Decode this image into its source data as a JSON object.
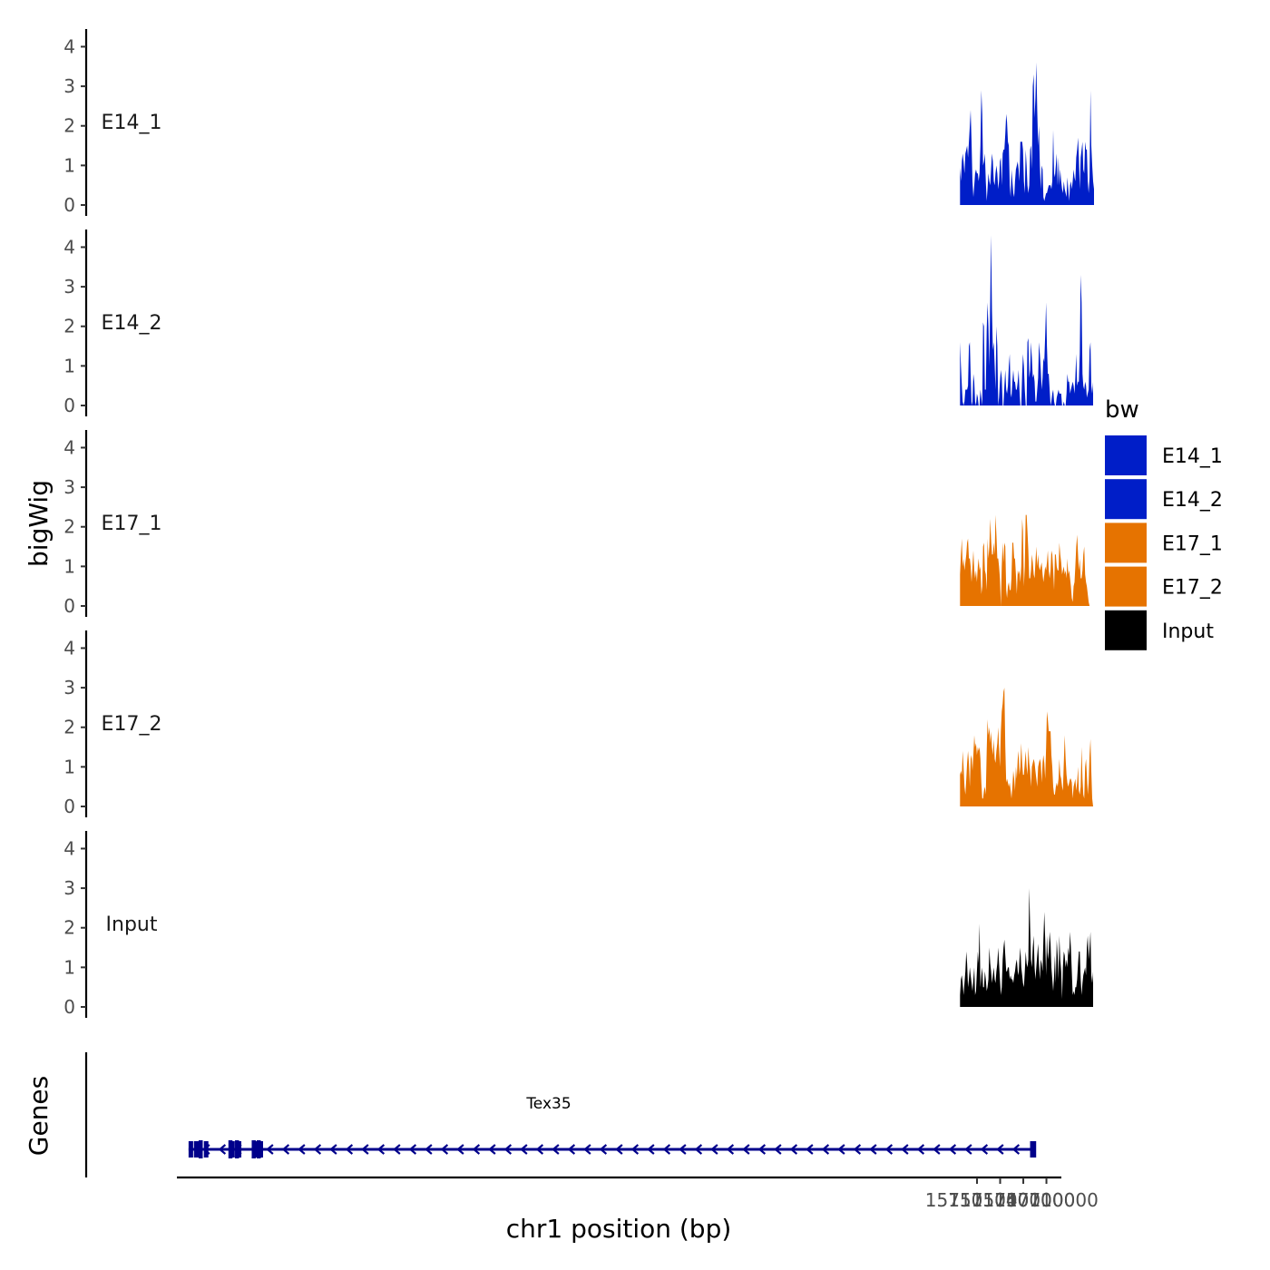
{
  "chart_data": {
    "type": "area",
    "title": "",
    "ylabel": "bigWig",
    "xlabel": "chr1 position (bp)",
    "genes_label": "Genes",
    "xlim": [
      156997500,
      157111700
    ],
    "ylim": [
      0,
      4.4
    ],
    "y_ticks": [
      0,
      1,
      2,
      3,
      4
    ],
    "x_ticks": [
      157101000,
      157104000,
      157107000,
      157110000
    ],
    "x_tick_labels": [
      "157101000",
      "157104000",
      "157107000",
      "157110000"
    ],
    "legend": {
      "title": "bw",
      "placement": "right",
      "entries": [
        {
          "label": "E14_1",
          "color": "#001ec8"
        },
        {
          "label": "E14_2",
          "color": "#001ec8"
        },
        {
          "label": "E17_1",
          "color": "#e67300"
        },
        {
          "label": "E17_2",
          "color": "#e67300"
        },
        {
          "label": "Input",
          "color": "#000000"
        }
      ]
    },
    "x_start": 157098800,
    "x_step": 115,
    "series": [
      {
        "name": "E14_1",
        "color": "#001ec8",
        "values": [
          0.95,
          0.6,
          1.1,
          1.3,
          1.1,
          0.8,
          1.3,
          1.4,
          1.5,
          1.2,
          1.6,
          2.0,
          2.4,
          1.6,
          0.6,
          0.2,
          0.5,
          0.8,
          0.9,
          0.8,
          0.8,
          0.6,
          0.8,
          1.5,
          2.9,
          2.3,
          1.0,
          1.1,
          1.3,
          0.6,
          0.1,
          0.4,
          0.8,
          0.6,
          0.5,
          0.9,
          1.3,
          1.1,
          0.6,
          0.5,
          0.8,
          1.0,
          0.8,
          0.4,
          0.6,
          1.1,
          1.2,
          0.5,
          1.3,
          1.4,
          1.4,
          1.8,
          2.3,
          2.1,
          1.6,
          1.5,
          0.5,
          0.2,
          0.9,
          0.6,
          0.3,
          0.2,
          0.6,
          0.9,
          1.0,
          1.1,
          0.9,
          0.6,
          1.6,
          1.6,
          1.6,
          1.4,
          0.6,
          0.3,
          1.4,
          1.0,
          0.5,
          0.3,
          0.5,
          1.4,
          1.5,
          0.9,
          3.0,
          3.3,
          2.2,
          2.7,
          3.6,
          2.4,
          1.5,
          2.0,
          1.0,
          0.4,
          1.0,
          0.9,
          0.2,
          0.1,
          0.2,
          0.3,
          0.3,
          0.4,
          0.5,
          0.5,
          0.5,
          0.4,
          0.6,
          1.9,
          0.8,
          0.7,
          1.0,
          1.3,
          0.5,
          1.2,
          0.5,
          0.9,
          0.6,
          0.4,
          0.3,
          0.6,
          0.4,
          0.3,
          0.2,
          0.7,
          0.4,
          0.1,
          0.5,
          0.6,
          0.4,
          0.6,
          0.9,
          0.7,
          0.6,
          1.2,
          1.4,
          1.7,
          1.2,
          0.4,
          1.2,
          1.4,
          1.6,
          0.9,
          0.8,
          1.6,
          1.4,
          1.4,
          0.6,
          0.3,
          0.7,
          2.9,
          1.5,
          1.0,
          0.6,
          0.4
        ]
      },
      {
        "name": "E14_2",
        "color": "#001ec8",
        "values": [
          1.6,
          1.0,
          0.5,
          0.1,
          0.0,
          0.1,
          0.4,
          0.4,
          0.4,
          0.5,
          1.5,
          1.6,
          0.8,
          0.0,
          0.1,
          0.8,
          0.6,
          0.1,
          0.0,
          0.3,
          0.2,
          -0.1,
          0.0,
          0.4,
          0.2,
          -0.1,
          2.1,
          2.0,
          0.4,
          0.4,
          1.9,
          2.6,
          2.0,
          1.0,
          2.7,
          4.3,
          2.4,
          1.4,
          1.6,
          1.0,
          0.4,
          2.0,
          1.5,
          0.0,
          0.2,
          0.6,
          0.9,
          0.7,
          -0.1,
          -0.1,
          0.5,
          0.9,
          0.4,
          0.3,
          0.5,
          1.0,
          1.3,
          0.3,
          0.2,
          0.6,
          0.9,
          0.6,
          0.6,
          0.4,
          0.4,
          0.6,
          0.9,
          0.4,
          0.0,
          0.0,
          0.8,
          1.3,
          1.0,
          0.4,
          0.0,
          -0.1,
          1.6,
          1.7,
          0.7,
          0.9,
          1.6,
          1.2,
          0.7,
          0.8,
          0.6,
          0.1,
          0.1,
          0.4,
          0.7,
          1.6,
          1.3,
          0.9,
          0.4,
          0.7,
          1.2,
          1.1,
          1.8,
          2.6,
          1.5,
          0.8,
          0.8,
          0.4,
          0.0,
          0.1,
          0.3,
          0.4,
          0.1,
          -0.1,
          -0.1,
          0.2,
          0.3,
          0.4,
          0.3,
          0.3,
          0.3,
          0.0,
          0.0,
          0.1,
          -0.1,
          -0.1,
          0.3,
          0.8,
          0.6,
          0.6,
          0.3,
          0.4,
          0.5,
          0.6,
          0.5,
          0.3,
          0.7,
          1.3,
          0.5,
          0.6,
          0.6,
          1.3,
          3.3,
          2.6,
          0.8,
          0.5,
          0.4,
          0.6,
          0.5,
          0.2,
          0.3,
          0.4,
          1.4,
          1.6,
          0.5,
          0.3,
          0.6
        ]
      },
      {
        "name": "E17_1",
        "color": "#e67300",
        "values": [
          0.8,
          1.3,
          1.7,
          1.0,
          1.2,
          0.9,
          1.1,
          1.3,
          1.6,
          1.7,
          1.2,
          1.2,
          1.0,
          0.6,
          1.0,
          1.4,
          0.9,
          0.7,
          0.9,
          0.6,
          1.0,
          1.2,
          0.9,
          1.0,
          0.3,
          0.5,
          1.5,
          1.6,
          0.9,
          0.8,
          0.4,
          1.7,
          1.2,
          1.5,
          2.2,
          1.7,
          1.3,
          1.3,
          1.6,
          1.3,
          2.3,
          1.8,
          1.2,
          1.2,
          1.0,
          0.7,
          -0.1,
          1.0,
          1.6,
          1.1,
          1.6,
          1.5,
          0.4,
          0.2,
          0.5,
          0.6,
          0.4,
          0.4,
          0.7,
          1.6,
          1.6,
          1.2,
          1.2,
          0.8,
          0.3,
          0.9,
          0.8,
          0.9,
          0.6,
          1.0,
          2.2,
          1.9,
          0.5,
          1.0,
          2.3,
          2.3,
          1.9,
          1.4,
          0.7,
          0.7,
          0.9,
          1.3,
          1.1,
          0.8,
          0.7,
          1.1,
          1.5,
          1.0,
          1.3,
          1.0,
          0.9,
          1.0,
          1.1,
          0.8,
          0.6,
          0.8,
          1.0,
          0.9,
          1.1,
          1.4,
          0.9,
          0.7,
          0.9,
          1.4,
          1.3,
          0.9,
          0.4,
          1.3,
          1.3,
          1.0,
          0.9,
          0.9,
          1.6,
          1.3,
          1.1,
          0.8,
          0.9,
          1.0,
          0.8,
          0.9,
          0.7,
          1.2,
          0.8,
          0.9,
          0.7,
          0.5,
          0.2,
          0.1,
          0.5,
          0.6,
          1.0,
          1.5,
          1.8,
          1.3,
          0.9,
          1.2,
          0.7,
          0.7,
          0.9,
          1.3,
          1.5,
          0.8,
          0.6,
          0.5,
          0.3,
          0.1,
          0.0
        ]
      },
      {
        "name": "E17_2",
        "color": "#e67300",
        "values": [
          0.8,
          0.9,
          0.8,
          1.4,
          1.0,
          0.5,
          0.3,
          0.7,
          1.1,
          1.4,
          1.1,
          0.5,
          1.2,
          1.3,
          0.9,
          1.3,
          1.8,
          1.5,
          1.6,
          1.3,
          1.5,
          1.4,
          1.5,
          1.2,
          0.6,
          0.2,
          0.2,
          0.4,
          0.5,
          0.3,
          1.4,
          2.2,
          1.8,
          2.0,
          1.6,
          1.9,
          1.5,
          1.3,
          1.7,
          1.2,
          1.1,
          1.4,
          1.6,
          2.0,
          1.5,
          1.0,
          1.9,
          2.4,
          2.6,
          2.9,
          3.0,
          1.5,
          0.6,
          0.7,
          0.6,
          0.5,
          0.6,
          0.4,
          0.2,
          0.5,
          0.9,
          0.7,
          0.4,
          1.0,
          0.7,
          1.2,
          1.4,
          0.8,
          1.0,
          1.6,
          1.1,
          0.8,
          0.8,
          1.1,
          1.4,
          1.0,
          0.8,
          1.5,
          1.1,
          0.9,
          0.5,
          1.0,
          1.1,
          1.2,
          1.1,
          0.9,
          0.7,
          0.5,
          1.0,
          1.1,
          1.2,
          1.1,
          0.6,
          1.1,
          1.3,
          1.1,
          0.7,
          1.5,
          2.4,
          2.2,
          1.9,
          1.9,
          1.9,
          1.3,
          1.0,
          0.5,
          0.3,
          0.3,
          0.5,
          0.6,
          0.5,
          0.7,
          1.2,
          0.8,
          0.7,
          0.5,
          0.4,
          1.1,
          1.8,
          1.2,
          0.8,
          0.6,
          0.5,
          0.6,
          0.7,
          0.7,
          0.6,
          0.2,
          0.5,
          0.6,
          0.7,
          0.4,
          0.6,
          1.0,
          0.4,
          0.3,
          0.5,
          1.5,
          0.7,
          0.3,
          0.2,
          1.0,
          1.2,
          0.8,
          0.3,
          0.6,
          1.3,
          1.7,
          0.9,
          0.2,
          0.0
        ]
      },
      {
        "name": "Input",
        "color": "#000000",
        "values": [
          0.3,
          0.7,
          0.8,
          0.6,
          0.3,
          0.6,
          0.9,
          1.4,
          1.1,
          0.5,
          0.7,
          1.0,
          0.8,
          0.6,
          0.4,
          0.7,
          1.0,
          0.3,
          0.4,
          0.9,
          1.4,
          1.1,
          2.1,
          0.5,
          0.8,
          1.0,
          0.5,
          0.5,
          0.9,
          0.7,
          0.4,
          0.5,
          0.7,
          1.5,
          1.1,
          0.9,
          0.6,
          0.8,
          1.0,
          0.7,
          0.6,
          0.9,
          1.1,
          1.5,
          1.1,
          0.7,
          0.3,
          0.5,
          1.2,
          1.5,
          1.7,
          1.3,
          0.9,
          0.9,
          1.0,
          1.0,
          0.7,
          0.8,
          0.7,
          0.7,
          0.6,
          0.8,
          0.9,
          1.1,
          1.2,
          0.9,
          0.8,
          1.2,
          1.5,
          1.0,
          0.8,
          0.6,
          0.5,
          0.9,
          1.4,
          1.1,
          1.0,
          1.2,
          3.0,
          2.0,
          1.2,
          1.0,
          1.5,
          1.8,
          1.0,
          0.7,
          1.0,
          1.3,
          1.6,
          1.1,
          0.7,
          1.2,
          1.1,
          0.9,
          1.7,
          2.4,
          1.7,
          0.8,
          1.8,
          1.2,
          1.4,
          1.9,
          1.6,
          1.0,
          0.7,
          0.4,
          0.8,
          1.3,
          0.6,
          1.7,
          1.3,
          0.7,
          1.8,
          1.2,
          0.9,
          0.2,
          1.0,
          1.4,
          1.3,
          1.0,
          1.2,
          1.0,
          1.5,
          1.3,
          1.9,
          1.5,
          0.9,
          0.3,
          0.4,
          0.3,
          0.5,
          0.5,
          0.7,
          1.1,
          1.4,
          1.4,
          0.7,
          0.3,
          0.6,
          0.8,
          0.9,
          1.0,
          0.8,
          1.5,
          1.8,
          1.2,
          1.5,
          1.9,
          0.8,
          0.6,
          0.9
        ]
      }
    ],
    "gene_track": {
      "gene": "Tex35",
      "color": "#00008b",
      "start": 156998780,
      "end": 157108180,
      "strand": "-",
      "exons": [
        [
          156998780,
          156999040
        ],
        [
          156999470,
          156999580
        ],
        [
          157000000,
          157000160
        ],
        [
          157000760,
          157000940
        ],
        [
          157004180,
          157004260
        ],
        [
          157005030,
          157005110
        ],
        [
          157007200,
          157007290
        ],
        [
          157007850,
          157007930
        ],
        [
          157108080,
          157108180
        ],
        [
          157107880,
          157107960
        ]
      ]
    }
  }
}
